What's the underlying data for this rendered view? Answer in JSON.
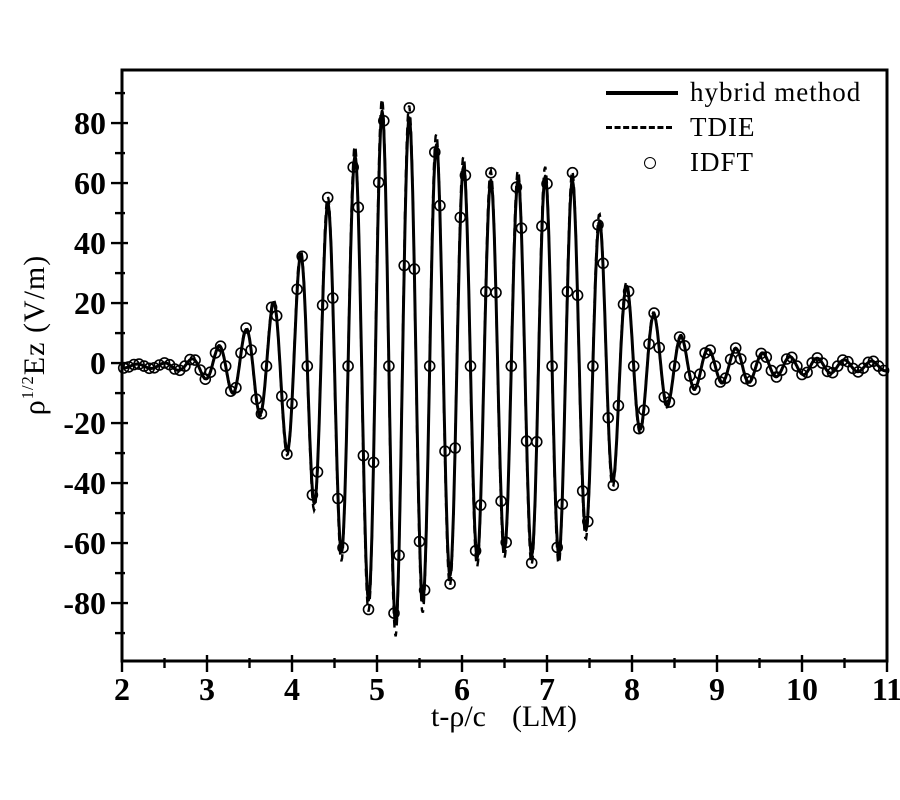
{
  "page": {
    "background": "#ffffff",
    "ink": "#000000"
  },
  "chart_data": {
    "type": "line",
    "title": "",
    "xlabel": "t-ρ/c (LM)",
    "xlabel_parts": {
      "formula": "t-ρ/c",
      "unit": "(LM)"
    },
    "ylabel": "ρ^(1/2)Ez (V/m)",
    "ylabel_parts": {
      "symbol": "ρ",
      "exponent": "1/2",
      "rest": "Ez (V/m)"
    },
    "grid": false,
    "legend_position": "top-right",
    "x_axis": {
      "min": 2,
      "max": 11,
      "major_ticks": [
        2,
        3,
        4,
        5,
        6,
        7,
        8,
        9,
        10,
        11
      ],
      "tick_labels": [
        "2",
        "3",
        "4",
        "5",
        "6",
        "7",
        "8",
        "9",
        "10",
        "11"
      ],
      "minor_step": 0.5
    },
    "y_axis": {
      "range": [
        -99.3,
        97.7
      ],
      "major_ticks": [
        80,
        60,
        40,
        20,
        0,
        -20,
        -40,
        -60,
        -80
      ],
      "tick_labels": [
        "80",
        "60",
        "40",
        "20",
        "0",
        "-20",
        "-40",
        "-60",
        "-80"
      ],
      "minor_step": 10
    },
    "series": [
      {
        "name": "hybrid method",
        "style": "solid-line",
        "amplitude_factor": 1.0
      },
      {
        "name": "TDIE",
        "style": "dashed-line",
        "amplitude_factor": 1.05
      },
      {
        "name": "IDFT",
        "style": "open-circles",
        "amplitude_factor": 1.04,
        "sample_step": 0.06
      }
    ],
    "signal_model": {
      "baseline": -1,
      "carrier_period": 0.32,
      "carrier_peak_t": 5.06,
      "envelope_points": [
        [
          2.0,
          0.6
        ],
        [
          2.4,
          0.8
        ],
        [
          2.7,
          1.5
        ],
        [
          2.9,
          3
        ],
        [
          3.1,
          6
        ],
        [
          3.3,
          9
        ],
        [
          3.5,
          13
        ],
        [
          3.7,
          18
        ],
        [
          3.9,
          26
        ],
        [
          4.1,
          37
        ],
        [
          4.3,
          48
        ],
        [
          4.5,
          58
        ],
        [
          4.7,
          68
        ],
        [
          4.9,
          78
        ],
        [
          5.06,
          85
        ],
        [
          5.25,
          86
        ],
        [
          5.45,
          81
        ],
        [
          5.65,
          75
        ],
        [
          5.85,
          70
        ],
        [
          6.05,
          66
        ],
        [
          6.25,
          62.5
        ],
        [
          6.5,
          61
        ],
        [
          6.7,
          62.5
        ],
        [
          6.9,
          63.5
        ],
        [
          7.1,
          63
        ],
        [
          7.3,
          62
        ],
        [
          7.5,
          53
        ],
        [
          7.7,
          45
        ],
        [
          7.9,
          28
        ],
        [
          8.1,
          21
        ],
        [
          8.3,
          16
        ],
        [
          8.5,
          11
        ],
        [
          8.7,
          8
        ],
        [
          8.9,
          5.5
        ],
        [
          9.1,
          5.5
        ],
        [
          9.3,
          6
        ],
        [
          9.5,
          4.5
        ],
        [
          9.7,
          3.5
        ],
        [
          9.9,
          3
        ],
        [
          10.1,
          2.8
        ],
        [
          10.4,
          2.2
        ],
        [
          10.7,
          1.8
        ],
        [
          11.0,
          1.5
        ]
      ]
    },
    "legend": [
      {
        "label": "hybrid method",
        "marker": "solid-line"
      },
      {
        "label": "TDIE",
        "marker": "dashed-line"
      },
      {
        "label": "IDFT",
        "marker": "open-circle"
      }
    ]
  }
}
